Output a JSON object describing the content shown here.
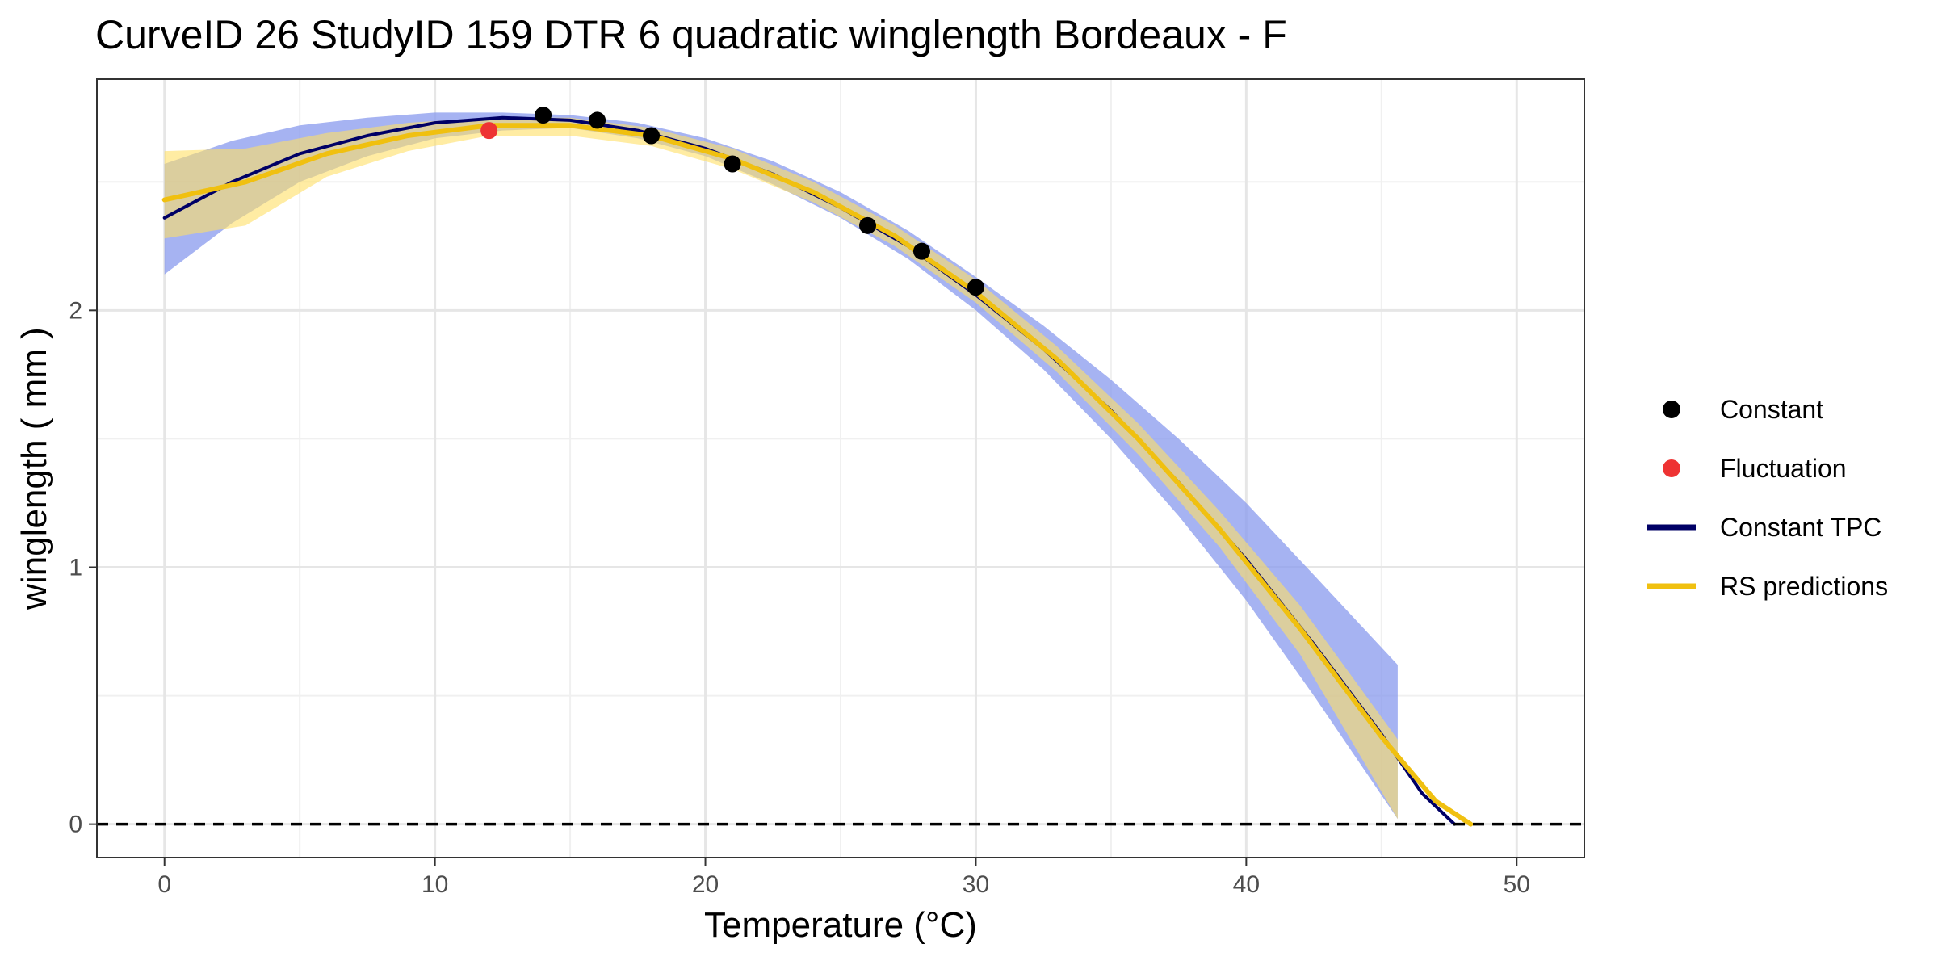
{
  "chart_data": {
    "type": "line",
    "title": "CurveID 26 StudyID 159 DTR 6 quadratic winglength Bordeaux - F",
    "xlabel": "Temperature (°C)",
    "ylabel": "winglength ( mm )",
    "xlim": [
      -2.5,
      52.5
    ],
    "ylim": [
      -0.13,
      2.9
    ],
    "x_ticks": [
      0,
      10,
      20,
      30,
      40,
      50
    ],
    "y_ticks": [
      0,
      1,
      2
    ],
    "grid": true,
    "legend_position": "right",
    "reference_line": {
      "y": 0,
      "style": "dashed"
    },
    "colors": {
      "constant": "#000000",
      "fluctuation": "#ee3333",
      "constant_tpc": "#000066",
      "rs_predictions": "#f0c010",
      "tpc_band": "#8899ee",
      "rs_band": "#ffe066"
    },
    "series": [
      {
        "name": "Constant",
        "kind": "points",
        "x": [
          14,
          16,
          18,
          21,
          26,
          28,
          30
        ],
        "y": [
          2.76,
          2.74,
          2.68,
          2.57,
          2.33,
          2.23,
          2.09
        ]
      },
      {
        "name": "Fluctuation",
        "kind": "points",
        "x": [
          12
        ],
        "y": [
          2.7
        ]
      },
      {
        "name": "Constant TPC",
        "kind": "line",
        "x": [
          0,
          2.5,
          5,
          7.5,
          10,
          12.5,
          15,
          17.5,
          20,
          22.5,
          25,
          27.5,
          30,
          32.5,
          35,
          37.5,
          40,
          42.5,
          45,
          46.5,
          47.7
        ],
        "y": [
          2.36,
          2.5,
          2.61,
          2.68,
          2.73,
          2.75,
          2.74,
          2.7,
          2.63,
          2.53,
          2.4,
          2.25,
          2.06,
          1.85,
          1.61,
          1.33,
          1.03,
          0.7,
          0.35,
          0.12,
          0.0
        ]
      },
      {
        "name": "Constant TPC band",
        "kind": "band",
        "x": [
          0,
          2.5,
          5,
          7.5,
          10,
          12.5,
          15,
          17.5,
          20,
          22.5,
          25,
          27.5,
          30,
          32.5,
          35,
          37.5,
          40,
          42.5,
          45.6
        ],
        "lower": [
          2.14,
          2.34,
          2.5,
          2.6,
          2.67,
          2.7,
          2.71,
          2.67,
          2.6,
          2.49,
          2.36,
          2.2,
          2.0,
          1.77,
          1.5,
          1.2,
          0.87,
          0.5,
          0.02
        ],
        "upper": [
          2.57,
          2.66,
          2.72,
          2.75,
          2.77,
          2.77,
          2.76,
          2.73,
          2.67,
          2.58,
          2.46,
          2.31,
          2.13,
          1.94,
          1.73,
          1.5,
          1.25,
          0.97,
          0.62
        ]
      },
      {
        "name": "RS predictions",
        "kind": "line",
        "x": [
          0,
          3,
          6,
          9,
          12,
          15,
          18,
          21,
          24,
          27,
          30,
          33,
          36,
          39,
          42,
          45,
          47,
          48.3
        ],
        "y": [
          2.43,
          2.5,
          2.61,
          2.68,
          2.72,
          2.72,
          2.68,
          2.59,
          2.46,
          2.29,
          2.07,
          1.81,
          1.5,
          1.15,
          0.76,
          0.34,
          0.09,
          0.0
        ]
      },
      {
        "name": "RS predictions band",
        "kind": "band",
        "x": [
          0,
          3,
          6,
          9,
          12,
          15,
          18,
          21,
          24,
          27,
          30,
          33,
          36,
          39,
          42,
          45.6
        ],
        "lower": [
          2.28,
          2.33,
          2.52,
          2.62,
          2.68,
          2.68,
          2.64,
          2.55,
          2.42,
          2.25,
          2.03,
          1.76,
          1.44,
          1.08,
          0.66,
          0.02
        ],
        "upper": [
          2.62,
          2.63,
          2.69,
          2.73,
          2.75,
          2.75,
          2.71,
          2.63,
          2.5,
          2.33,
          2.12,
          1.86,
          1.56,
          1.22,
          0.85,
          0.33
        ]
      }
    ],
    "legend": [
      {
        "label": "Constant",
        "type": "point",
        "color": "#000000"
      },
      {
        "label": "Fluctuation",
        "type": "point",
        "color": "#ee3333"
      },
      {
        "label": "Constant TPC",
        "type": "line",
        "color": "#000066"
      },
      {
        "label": "RS predictions",
        "type": "line",
        "color": "#f0c010"
      }
    ]
  }
}
